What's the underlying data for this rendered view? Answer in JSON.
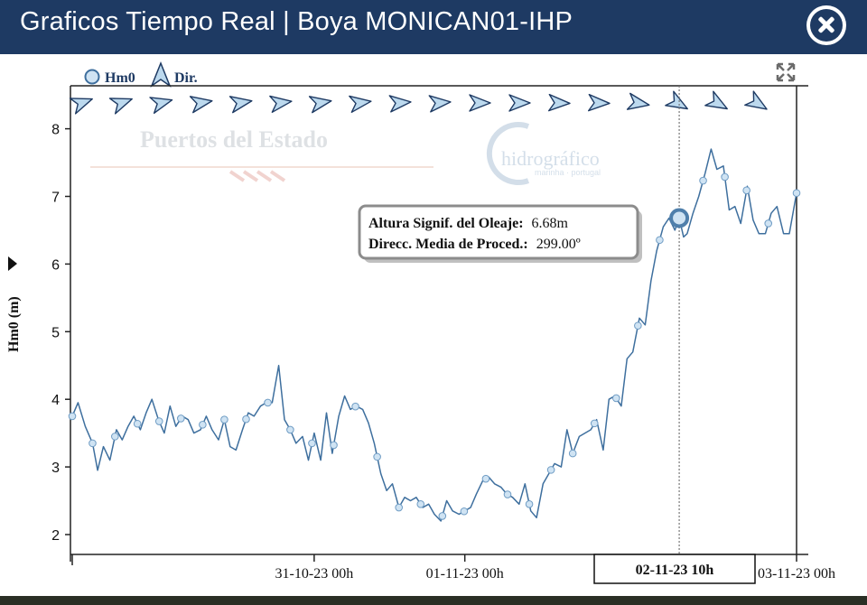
{
  "window": {
    "title": "Graficos Tiempo Real | Boya MONICAN01-IHP"
  },
  "legend": {
    "hm0_label": "Hm0",
    "dir_label": "Dir."
  },
  "watermarks": {
    "puertos": "Puertos del Estado",
    "hidro": "hidrográfico"
  },
  "tooltip": {
    "line1_label": "Altura Signif. del Oleaje:",
    "line1_value": "6.68m",
    "line2_label": "Direcc. Media de Proced.:",
    "line2_value": "299.00º"
  },
  "crosshair_label": "02-11-23 10h",
  "colors": {
    "line": "#3e6f9e",
    "marker_fill": "#cfe3f3",
    "arrow_fill": "#bcd9ee",
    "title_bar": "#1e3a63"
  },
  "chart_data": {
    "type": "line",
    "title": "",
    "ylabel": "Hm0 (m)",
    "xlabel": "",
    "ylim": [
      1.8,
      8.45
    ],
    "yticks": [
      2,
      3,
      4,
      5,
      6,
      7,
      8
    ],
    "xlim": [
      0,
      100
    ],
    "xtick_labels": [
      {
        "x": 33.4,
        "label": "31-10-23 00h"
      },
      {
        "x": 54.2,
        "label": "01-11-23 00h"
      },
      {
        "x": 100,
        "label": "03-11-23 00h"
      }
    ],
    "crosshair_x": 83.8,
    "grid": false,
    "legend_position": "top-left",
    "series": [
      {
        "name": "Hm0",
        "x": [
          0,
          0.8,
          1.8,
          2.8,
          3.5,
          4.3,
          5.2,
          6.1,
          6.9,
          7.7,
          8.5,
          9.4,
          10.2,
          11.0,
          11.9,
          12.7,
          13.5,
          14.3,
          15.2,
          16.0,
          16.8,
          17.7,
          18.5,
          19.3,
          20.2,
          21.0,
          21.8,
          22.6,
          23.5,
          24.3,
          25.1,
          26.0,
          26.8,
          27.6,
          28.5,
          29.3,
          30.1,
          30.9,
          31.8,
          32.6,
          33.4,
          34.3,
          35.1,
          35.9,
          36.8,
          37.6,
          38.4,
          39.2,
          40.1,
          40.9,
          41.7,
          42.6,
          43.4,
          44.2,
          45.1,
          45.9,
          46.7,
          47.5,
          48.4,
          49.2,
          50.0,
          50.9,
          51.7,
          52.5,
          53.4,
          54.2,
          55.0,
          55.8,
          56.7,
          57.5,
          58.3,
          59.2,
          60.0,
          60.8,
          61.7,
          62.5,
          63.3,
          64.1,
          65.0,
          65.8,
          66.6,
          67.5,
          68.3,
          69.1,
          70.0,
          70.8,
          71.6,
          72.4,
          73.3,
          74.1,
          74.9,
          75.8,
          76.6,
          77.4,
          78.3,
          79.1,
          79.9,
          80.7,
          81.6,
          82.4,
          83.2,
          83.8,
          84.4,
          84.9,
          85.7,
          86.5,
          87.4,
          88.2,
          89.0,
          89.9,
          90.7,
          91.5,
          92.3,
          93.2,
          94.0,
          94.8,
          95.7,
          96.5,
          97.3,
          98.2,
          99.0,
          100
        ],
        "y": [
          3.75,
          3.95,
          3.6,
          3.35,
          2.95,
          3.3,
          3.1,
          3.55,
          3.4,
          3.6,
          3.75,
          3.55,
          3.8,
          4.0,
          3.7,
          3.5,
          3.9,
          3.6,
          3.75,
          3.7,
          3.5,
          3.55,
          3.75,
          3.55,
          3.4,
          3.7,
          3.3,
          3.25,
          3.55,
          3.8,
          3.75,
          3.9,
          3.95,
          3.95,
          4.5,
          3.7,
          3.55,
          3.35,
          3.45,
          3.1,
          3.5,
          3.1,
          3.8,
          3.2,
          3.75,
          4.05,
          3.85,
          3.9,
          3.85,
          3.65,
          3.35,
          2.9,
          2.65,
          2.75,
          2.4,
          2.55,
          2.5,
          2.55,
          2.4,
          2.45,
          2.3,
          2.2,
          2.5,
          2.35,
          2.3,
          2.35,
          2.4,
          2.6,
          2.8,
          2.85,
          2.75,
          2.7,
          2.6,
          2.55,
          2.45,
          2.75,
          2.35,
          2.25,
          2.75,
          2.9,
          3.05,
          3.0,
          3.55,
          3.2,
          3.45,
          3.5,
          3.55,
          3.7,
          3.25,
          4.0,
          4.05,
          3.9,
          4.6,
          4.7,
          5.2,
          5.1,
          5.75,
          6.2,
          6.55,
          6.68,
          6.5,
          6.68,
          6.4,
          6.45,
          6.75,
          7.0,
          7.35,
          7.7,
          7.4,
          7.45,
          6.8,
          6.85,
          6.6,
          7.15,
          6.65,
          6.45,
          6.45,
          6.75,
          6.85,
          6.45,
          6.45,
          7.05
        ]
      }
    ],
    "markers_x": [
      0,
      2.8,
      5.9,
      9.0,
      12.0,
      15.0,
      18.0,
      21.0,
      24.0,
      27.0,
      30.1,
      33.1,
      36.1,
      39.1,
      42.1,
      45.1,
      48.1,
      51.1,
      54.1,
      57.1,
      60.1,
      63.1,
      66.1,
      69.1,
      72.1,
      75.1,
      78.1,
      81.1,
      87.1,
      90.1,
      93.1,
      96.1,
      100
    ],
    "hover_point": {
      "x": 83.8,
      "y": 6.68,
      "direction_deg": 299
    },
    "direction_arrows_deg": [
      250,
      250,
      255,
      260,
      260,
      262,
      260,
      262,
      265,
      265,
      270,
      270,
      272,
      272,
      280,
      300,
      300,
      302
    ]
  }
}
